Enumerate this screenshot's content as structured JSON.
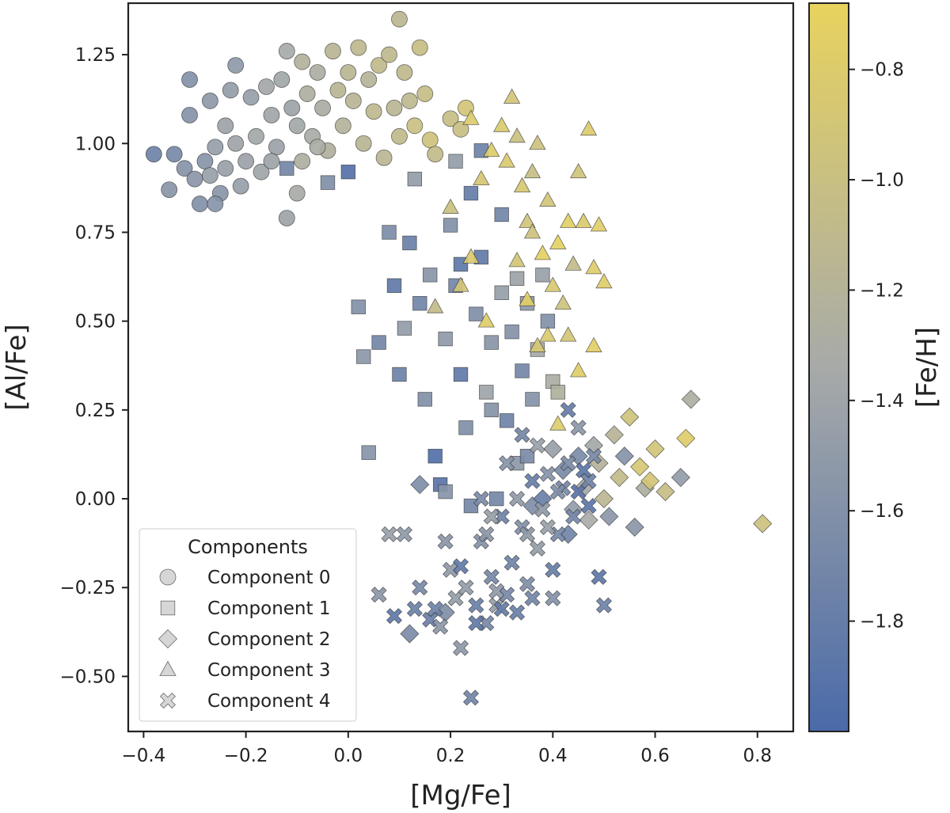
{
  "chart_data": {
    "type": "scatter",
    "xlabel": "[Mg/Fe]",
    "ylabel": "[Al/Fe]",
    "xlim": [
      -0.43,
      0.87
    ],
    "ylim": [
      -0.655,
      1.395
    ],
    "x_ticks": [
      -0.4,
      -0.2,
      0.0,
      0.2,
      0.4,
      0.6,
      0.8
    ],
    "x_tick_labels": [
      "−0.4",
      "−0.2",
      "0.0",
      "0.2",
      "0.4",
      "0.6",
      "0.8"
    ],
    "y_ticks": [
      -0.5,
      -0.25,
      0.0,
      0.25,
      0.5,
      0.75,
      1.0,
      1.25
    ],
    "y_tick_labels": [
      "−0.50",
      "−0.25",
      "0.00",
      "0.25",
      "0.50",
      "0.75",
      "1.00",
      "1.25"
    ],
    "grid": false,
    "colorbar": {
      "label": "[Fe/H]",
      "range": [
        -2.0,
        -0.68
      ],
      "ticks": [
        -1.8,
        -1.6,
        -1.4,
        -1.2,
        -1.0,
        -0.8
      ],
      "tick_labels": [
        "−1.8",
        "−1.6",
        "−1.4",
        "−1.2",
        "−1.0",
        "−0.8"
      ],
      "color_low": "#4a6aa8",
      "color_mid": "#a7aaa8",
      "color_high": "#e8d35e"
    },
    "legend": {
      "title": "Components",
      "placement": "lower-left",
      "entries": [
        {
          "label": "Component 0",
          "marker": "circle"
        },
        {
          "label": "Component 1",
          "marker": "square"
        },
        {
          "label": "Component 2",
          "marker": "diamond"
        },
        {
          "label": "Component 3",
          "marker": "triangle"
        },
        {
          "label": "Component 4",
          "marker": "x"
        }
      ]
    },
    "series": [
      {
        "component": 0,
        "marker": "circle",
        "points": [
          [
            -0.38,
            0.97
          ],
          [
            -0.35,
            0.87
          ],
          [
            -0.34,
            0.97
          ],
          [
            -0.32,
            0.93
          ],
          [
            -0.31,
            1.18
          ],
          [
            -0.31,
            1.08
          ],
          [
            -0.3,
            0.9
          ],
          [
            -0.29,
            0.83
          ],
          [
            -0.28,
            0.95
          ],
          [
            -0.27,
            1.12
          ],
          [
            -0.27,
            0.91
          ],
          [
            -0.26,
            0.99
          ],
          [
            -0.25,
            0.86
          ],
          [
            -0.24,
            1.05
          ],
          [
            -0.24,
            0.93
          ],
          [
            -0.23,
            1.15
          ],
          [
            -0.22,
            1.0
          ],
          [
            -0.21,
            0.88
          ],
          [
            -0.2,
            0.95
          ],
          [
            -0.19,
            1.13
          ],
          [
            -0.18,
            1.02
          ],
          [
            -0.17,
            0.92
          ],
          [
            -0.16,
            1.16
          ],
          [
            -0.15,
            1.08
          ],
          [
            -0.14,
            0.99
          ],
          [
            -0.13,
            1.18
          ],
          [
            -0.12,
            1.26
          ],
          [
            -0.11,
            1.1
          ],
          [
            -0.1,
            1.05
          ],
          [
            -0.1,
            0.86
          ],
          [
            -0.09,
            1.23
          ],
          [
            -0.08,
            1.14
          ],
          [
            -0.07,
            1.02
          ],
          [
            -0.06,
            1.2
          ],
          [
            -0.05,
            1.1
          ],
          [
            -0.04,
            0.98
          ],
          [
            -0.03,
            1.26
          ],
          [
            -0.02,
            1.15
          ],
          [
            -0.01,
            1.05
          ],
          [
            0.0,
            1.2
          ],
          [
            0.01,
            1.12
          ],
          [
            0.02,
            1.27
          ],
          [
            0.03,
            1.0
          ],
          [
            0.04,
            1.18
          ],
          [
            0.05,
            1.09
          ],
          [
            0.06,
            1.22
          ],
          [
            0.07,
            0.96
          ],
          [
            0.08,
            1.25
          ],
          [
            0.09,
            1.1
          ],
          [
            0.1,
            1.35
          ],
          [
            0.11,
            1.2
          ],
          [
            0.12,
            1.12
          ],
          [
            0.13,
            1.05
          ],
          [
            0.14,
            1.27
          ],
          [
            0.15,
            1.14
          ],
          [
            0.16,
            1.01
          ],
          [
            0.1,
            1.02
          ],
          [
            -0.06,
            0.99
          ],
          [
            -0.15,
            0.95
          ],
          [
            -0.22,
            1.22
          ],
          [
            -0.26,
            0.83
          ],
          [
            -0.12,
            0.79
          ],
          [
            -0.09,
            0.95
          ],
          [
            0.17,
            0.97
          ],
          [
            0.2,
            1.07
          ],
          [
            0.22,
            1.04
          ],
          [
            0.23,
            1.1
          ]
        ]
      },
      {
        "component": 1,
        "marker": "square",
        "points": [
          [
            -0.12,
            0.93
          ],
          [
            -0.04,
            0.89
          ],
          [
            0.0,
            0.92
          ],
          [
            0.02,
            0.54
          ],
          [
            0.03,
            0.4
          ],
          [
            0.04,
            0.13
          ],
          [
            0.06,
            0.44
          ],
          [
            0.08,
            0.75
          ],
          [
            0.09,
            0.6
          ],
          [
            0.1,
            0.35
          ],
          [
            0.11,
            0.48
          ],
          [
            0.12,
            0.72
          ],
          [
            0.13,
            0.9
          ],
          [
            0.14,
            0.55
          ],
          [
            0.15,
            0.28
          ],
          [
            0.16,
            0.63
          ],
          [
            0.17,
            0.12
          ],
          [
            0.18,
            0.04
          ],
          [
            0.19,
            0.45
          ],
          [
            0.2,
            0.77
          ],
          [
            0.21,
            0.6
          ],
          [
            0.22,
            0.35
          ],
          [
            0.23,
            0.2
          ],
          [
            0.24,
            0.86
          ],
          [
            0.25,
            0.52
          ],
          [
            0.26,
            0.68
          ],
          [
            0.27,
            0.3
          ],
          [
            0.28,
            0.44
          ],
          [
            0.29,
            0.0
          ],
          [
            0.3,
            0.58
          ],
          [
            0.31,
            0.22
          ],
          [
            0.32,
            0.47
          ],
          [
            0.33,
            0.1
          ],
          [
            0.34,
            0.36
          ],
          [
            0.35,
            0.55
          ],
          [
            0.36,
            0.28
          ],
          [
            0.37,
            0.42
          ],
          [
            0.38,
            0.63
          ],
          [
            0.39,
            0.5
          ],
          [
            0.4,
            0.33
          ],
          [
            0.21,
            0.95
          ],
          [
            0.24,
            -0.02
          ],
          [
            0.26,
            0.98
          ],
          [
            0.3,
            0.8
          ],
          [
            0.33,
            0.62
          ],
          [
            0.19,
            0.02
          ],
          [
            0.28,
            0.25
          ],
          [
            0.35,
            0.12
          ],
          [
            0.41,
            0.3
          ],
          [
            0.22,
            0.66
          ]
        ]
      },
      {
        "component": 2,
        "marker": "diamond",
        "points": [
          [
            0.14,
            0.04
          ],
          [
            0.12,
            -0.38
          ],
          [
            0.19,
            -0.32
          ],
          [
            0.4,
            0.14
          ],
          [
            0.42,
            0.08
          ],
          [
            0.44,
            -0.03
          ],
          [
            0.45,
            0.12
          ],
          [
            0.46,
            0.03
          ],
          [
            0.47,
            -0.06
          ],
          [
            0.48,
            0.15
          ],
          [
            0.49,
            0.1
          ],
          [
            0.5,
            0.0
          ],
          [
            0.51,
            -0.05
          ],
          [
            0.52,
            0.18
          ],
          [
            0.53,
            0.06
          ],
          [
            0.54,
            0.12
          ],
          [
            0.55,
            0.23
          ],
          [
            0.56,
            -0.08
          ],
          [
            0.57,
            0.09
          ],
          [
            0.58,
            0.03
          ],
          [
            0.59,
            0.05
          ],
          [
            0.6,
            0.14
          ],
          [
            0.62,
            0.02
          ],
          [
            0.65,
            0.06
          ],
          [
            0.66,
            0.17
          ],
          [
            0.67,
            0.28
          ],
          [
            0.81,
            -0.07
          ],
          [
            0.36,
            -0.02
          ],
          [
            0.38,
            0.0
          ],
          [
            0.43,
            -0.1
          ]
        ]
      },
      {
        "component": 3,
        "marker": "triangle",
        "points": [
          [
            0.24,
            1.07
          ],
          [
            0.26,
            0.9
          ],
          [
            0.28,
            0.98
          ],
          [
            0.3,
            1.05
          ],
          [
            0.31,
            0.95
          ],
          [
            0.32,
            1.13
          ],
          [
            0.33,
            1.02
          ],
          [
            0.34,
            0.88
          ],
          [
            0.35,
            0.78
          ],
          [
            0.36,
            0.92
          ],
          [
            0.37,
            1.0
          ],
          [
            0.38,
            0.69
          ],
          [
            0.39,
            0.84
          ],
          [
            0.4,
            0.6
          ],
          [
            0.41,
            0.72
          ],
          [
            0.42,
            0.55
          ],
          [
            0.43,
            0.78
          ],
          [
            0.44,
            0.66
          ],
          [
            0.45,
            0.92
          ],
          [
            0.46,
            0.78
          ],
          [
            0.47,
            1.04
          ],
          [
            0.48,
            0.65
          ],
          [
            0.49,
            0.77
          ],
          [
            0.5,
            0.61
          ],
          [
            0.33,
            0.67
          ],
          [
            0.35,
            0.56
          ],
          [
            0.37,
            0.43
          ],
          [
            0.39,
            0.46
          ],
          [
            0.2,
            0.82
          ],
          [
            0.22,
            0.6
          ],
          [
            0.24,
            0.68
          ],
          [
            0.27,
            0.5
          ],
          [
            0.17,
            0.54
          ],
          [
            0.43,
            0.46
          ],
          [
            0.48,
            0.43
          ],
          [
            0.41,
            0.21
          ],
          [
            0.45,
            0.36
          ],
          [
            0.36,
            0.75
          ]
        ]
      },
      {
        "component": 4,
        "marker": "x",
        "points": [
          [
            0.08,
            -0.1
          ],
          [
            0.11,
            -0.1
          ],
          [
            0.14,
            -0.25
          ],
          [
            0.16,
            -0.34
          ],
          [
            0.18,
            -0.36
          ],
          [
            0.2,
            -0.2
          ],
          [
            0.21,
            -0.28
          ],
          [
            0.22,
            -0.42
          ],
          [
            0.23,
            -0.25
          ],
          [
            0.24,
            -0.56
          ],
          [
            0.25,
            -0.3
          ],
          [
            0.26,
            -0.12
          ],
          [
            0.27,
            -0.35
          ],
          [
            0.28,
            -0.22
          ],
          [
            0.29,
            -0.3
          ],
          [
            0.3,
            -0.05
          ],
          [
            0.31,
            -0.27
          ],
          [
            0.32,
            -0.18
          ],
          [
            0.33,
            -0.32
          ],
          [
            0.34,
            -0.08
          ],
          [
            0.35,
            -0.24
          ],
          [
            0.36,
            0.05
          ],
          [
            0.37,
            -0.14
          ],
          [
            0.38,
            -0.03
          ],
          [
            0.39,
            0.07
          ],
          [
            0.4,
            -0.2
          ],
          [
            0.41,
            -0.1
          ],
          [
            0.42,
            0.03
          ],
          [
            0.43,
            0.1
          ],
          [
            0.44,
            -0.05
          ],
          [
            0.45,
            0.02
          ],
          [
            0.46,
            0.08
          ],
          [
            0.47,
            -0.02
          ],
          [
            0.48,
            0.12
          ],
          [
            0.49,
            -0.22
          ],
          [
            0.5,
            -0.3
          ],
          [
            0.3,
            -0.31
          ],
          [
            0.28,
            -0.05
          ],
          [
            0.25,
            -0.35
          ],
          [
            0.33,
            0.0
          ],
          [
            0.35,
            -0.1
          ],
          [
            0.31,
            0.1
          ],
          [
            0.29,
            -0.26
          ],
          [
            0.37,
            0.15
          ],
          [
            0.39,
            -0.08
          ],
          [
            0.41,
            0.02
          ],
          [
            0.43,
            0.25
          ],
          [
            0.45,
            0.2
          ],
          [
            0.09,
            -0.33
          ],
          [
            0.17,
            -0.31
          ],
          [
            0.06,
            -0.27
          ],
          [
            0.13,
            -0.31
          ],
          [
            0.22,
            -0.19
          ],
          [
            0.27,
            -0.1
          ],
          [
            0.34,
            0.18
          ],
          [
            0.36,
            -0.28
          ],
          [
            0.4,
            -0.28
          ],
          [
            0.47,
            0.05
          ],
          [
            0.19,
            -0.12
          ],
          [
            0.26,
            0.0
          ]
        ]
      }
    ]
  }
}
